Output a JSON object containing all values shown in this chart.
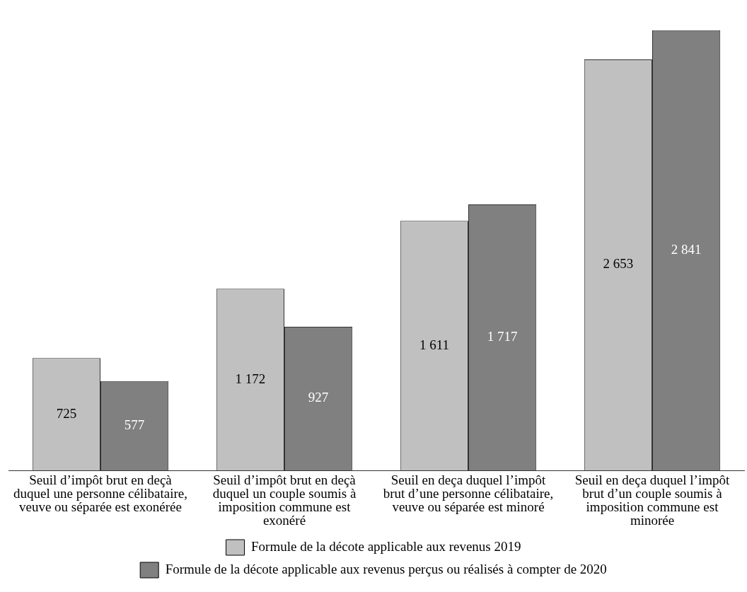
{
  "chart_data": {
    "type": "bar",
    "categories": [
      "Seuil d’impôt brut en deçà duquel une personne célibataire, veuve ou séparée est exonérée",
      "Seuil d’impôt brut en deçà duquel un couple soumis à imposition commune est exonéré",
      "Seuil en deça duquel l’impôt brut d’une personne célibataire, veuve ou séparée est minoré",
      "Seuil en deça duquel l’impôt brut d’un couple soumis à imposition commune est minorée"
    ],
    "series": [
      {
        "name": "Formule de la décote applicable aux revenus 2019",
        "color": "#c0c0c0",
        "values": [
          725,
          1172,
          1611,
          2653
        ],
        "value_labels": [
          "725",
          "1 172",
          "1 611",
          "2 653"
        ]
      },
      {
        "name": "Formule de la décote applicable aux revenus perçus ou réalisés à compter de 2020",
        "color": "#808080",
        "values": [
          577,
          927,
          1717,
          2841
        ],
        "value_labels": [
          "577",
          "927",
          "1 717",
          "2 841"
        ]
      }
    ],
    "relative": false,
    "grid": false,
    "legend": "bottom"
  }
}
